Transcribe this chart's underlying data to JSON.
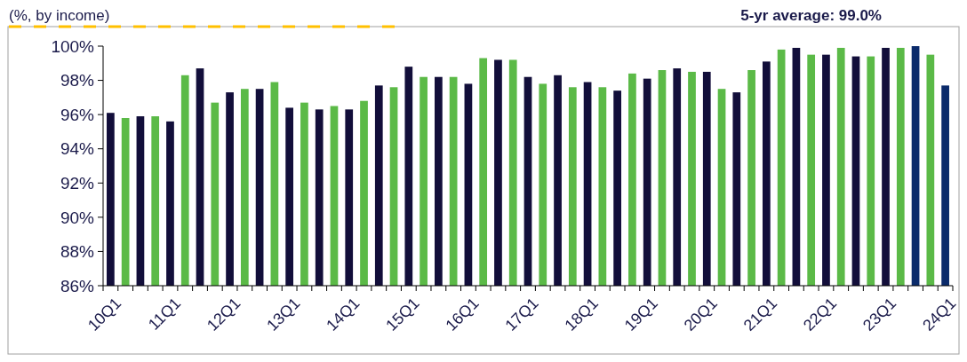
{
  "chart_data": {
    "type": "bar",
    "title": "(%, by income)",
    "subtitle": "5-yr average: 99.0%",
    "categories": [
      "10Q1",
      null,
      null,
      null,
      "11Q1",
      null,
      null,
      null,
      "12Q1",
      null,
      null,
      null,
      "13Q1",
      null,
      null,
      null,
      "14Q1",
      null,
      null,
      null,
      "15Q1",
      null,
      null,
      null,
      "16Q1",
      null,
      null,
      null,
      "17Q1",
      null,
      null,
      null,
      "18Q1",
      null,
      null,
      null,
      "19Q1",
      null,
      null,
      null,
      "20Q1",
      null,
      null,
      null,
      "21Q1",
      null,
      null,
      null,
      "22Q1",
      null,
      null,
      null,
      "23Q1",
      null,
      null,
      null,
      "24Q1"
    ],
    "values": [
      96.1,
      95.8,
      95.9,
      95.9,
      95.6,
      98.3,
      98.7,
      96.7,
      97.3,
      97.5,
      97.5,
      97.9,
      96.4,
      96.7,
      96.3,
      96.5,
      96.3,
      96.8,
      97.7,
      97.6,
      98.8,
      98.2,
      98.2,
      98.2,
      97.8,
      99.3,
      99.2,
      99.2,
      98.2,
      97.8,
      98.3,
      97.6,
      97.9,
      97.6,
      97.4,
      98.4,
      98.1,
      98.6,
      98.7,
      98.5,
      98.5,
      97.5,
      97.3,
      98.6,
      99.1,
      99.8,
      99.9,
      99.5,
      99.5,
      99.9,
      99.4,
      99.4,
      99.9,
      99.9,
      100,
      99.5,
      97.7
    ],
    "colors": [
      "#120e3a",
      "#5bba47",
      "#120e3a",
      "#5bba47",
      "#120e3a",
      "#5bba47",
      "#120e3a",
      "#5bba47",
      "#120e3a",
      "#5bba47",
      "#120e3a",
      "#5bba47",
      "#120e3a",
      "#5bba47",
      "#120e3a",
      "#5bba47",
      "#120e3a",
      "#5bba47",
      "#120e3a",
      "#5bba47",
      "#120e3a",
      "#5bba47",
      "#120e3a",
      "#5bba47",
      "#120e3a",
      "#5bba47",
      "#120e3a",
      "#5bba47",
      "#120e3a",
      "#5bba47",
      "#120e3a",
      "#5bba47",
      "#120e3a",
      "#5bba47",
      "#120e3a",
      "#5bba47",
      "#120e3a",
      "#5bba47",
      "#120e3a",
      "#5bba47",
      "#120e3a",
      "#5bba47",
      "#120e3a",
      "#5bba47",
      "#120e3a",
      "#5bba47",
      "#120e3a",
      "#5bba47",
      "#120e3a",
      "#5bba47",
      "#120e3a",
      "#5bba47",
      "#120e3a",
      "#5bba47",
      "#0b2b6b",
      "#5bba47",
      "#0b2b6b"
    ],
    "ylim": [
      86,
      100
    ],
    "yticks": [
      {
        "value": 86,
        "label": "86%"
      },
      {
        "value": 88,
        "label": "88%"
      },
      {
        "value": 90,
        "label": "90%"
      },
      {
        "value": 92,
        "label": "92%"
      },
      {
        "value": 94,
        "label": "94%"
      },
      {
        "value": 96,
        "label": "96%"
      },
      {
        "value": 98,
        "label": "98%"
      },
      {
        "value": 100,
        "label": "100%"
      }
    ],
    "grid": false
  }
}
